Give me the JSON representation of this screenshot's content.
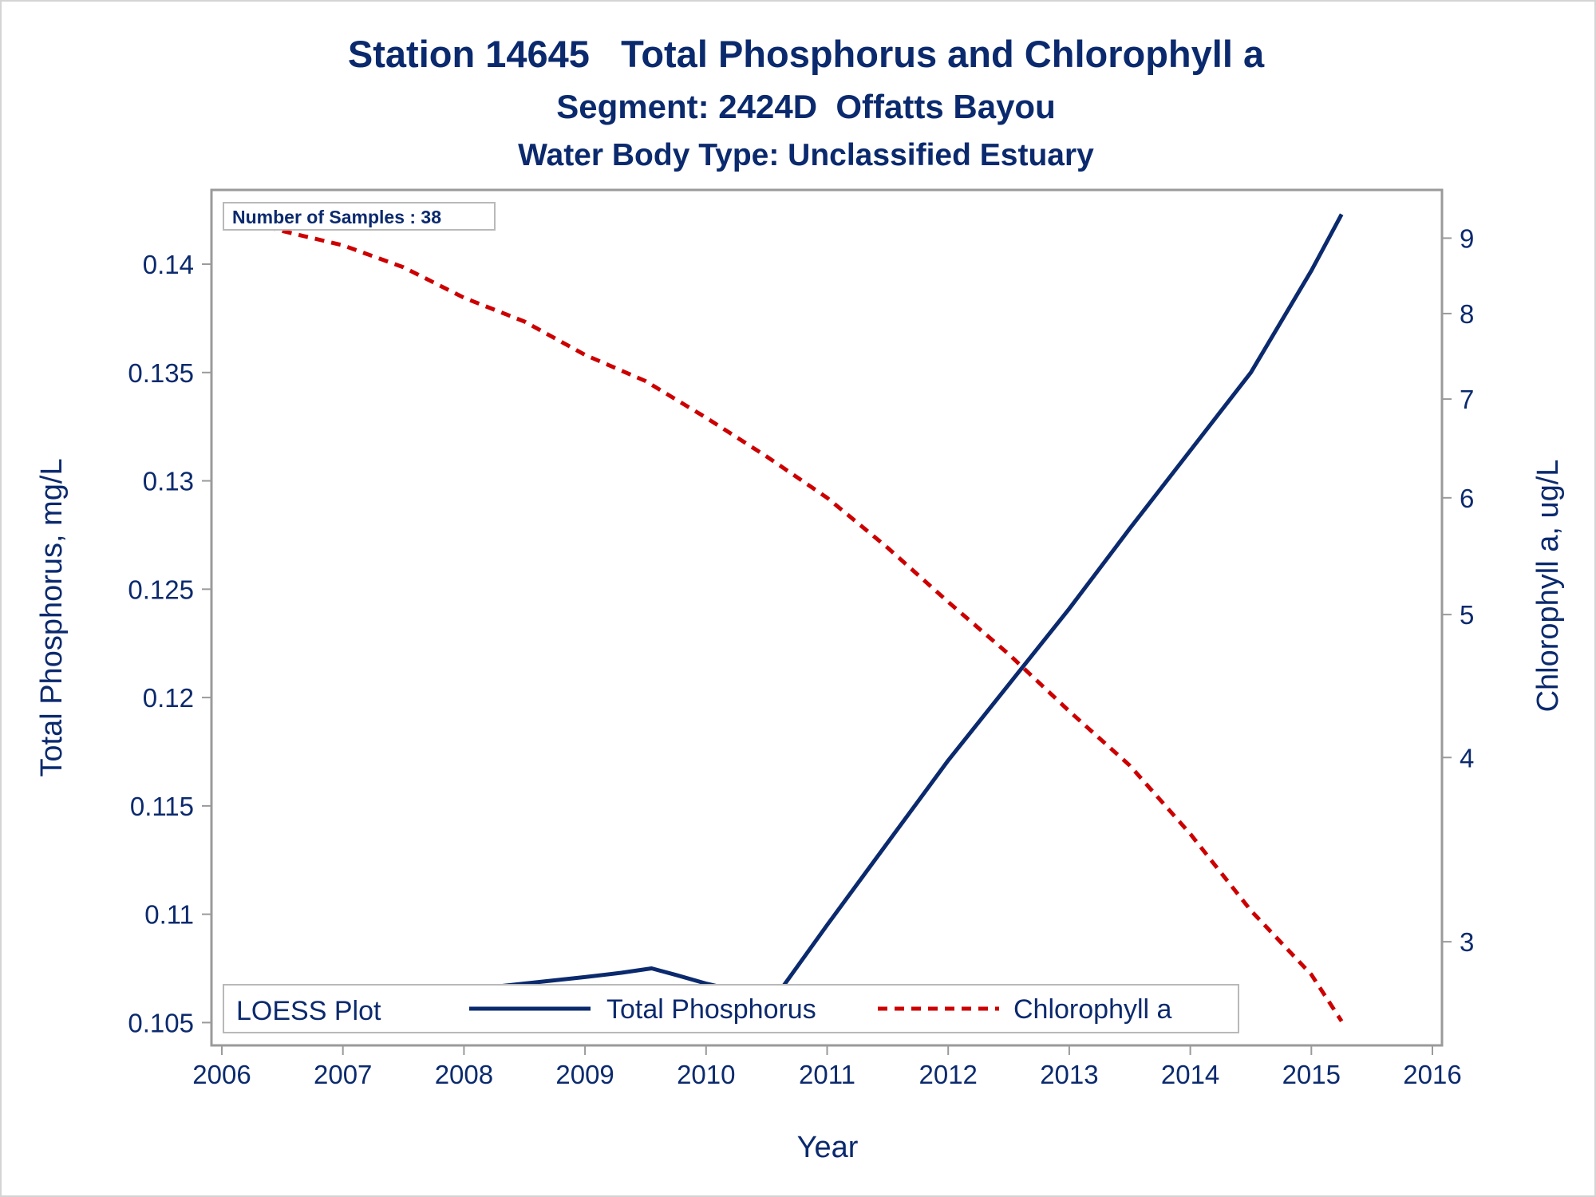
{
  "chart_data": {
    "type": "line",
    "title": "Station 14645   Total Phosphorus and Chlorophyll a",
    "subtitle": "Segment: 2424D  Offatts Bayou",
    "subtitle2": "Water Body Type: Unclassified Estuary",
    "xlabel": "Year",
    "ylabel": "Total Phosphorus, mg/L",
    "y2label": "Chlorophyll a, ug/L",
    "xlim": [
      2006,
      2016
    ],
    "ylim": [
      0.1045,
      0.1428
    ],
    "y2lim": [
      2.6,
      9.5
    ],
    "y2_scale": "log",
    "x_ticks": [
      "2006",
      "2007",
      "2008",
      "2009",
      "2010",
      "2011",
      "2012",
      "2013",
      "2014",
      "2015",
      "2016"
    ],
    "y_ticks": [
      "0.105",
      "0.11",
      "0.115",
      "0.12",
      "0.125",
      "0.13",
      "0.135",
      "0.14"
    ],
    "y2_ticks": [
      "3",
      "4",
      "5",
      "6",
      "7",
      "8",
      "9"
    ],
    "inset_text": "Number of Samples : 38",
    "grid": false,
    "legend": {
      "title": "LOESS Plot",
      "placement": "bottom-left inside",
      "entries": [
        "Total Phosphorus",
        "Chlorophyll a"
      ]
    },
    "series": [
      {
        "name": "Total Phosphorus",
        "axis": "left",
        "color": "#0b2a6e",
        "style": "solid",
        "x": [
          2006.1,
          2006.5,
          2007.0,
          2007.5,
          2008.0,
          2008.5,
          2009.0,
          2009.3,
          2009.55,
          2009.75,
          2010.0,
          2010.3,
          2010.55,
          2011.0,
          2011.5,
          2012.0,
          2012.5,
          2013.0,
          2013.5,
          2014.0,
          2014.5,
          2015.0,
          2015.25
        ],
        "values": [
          0.1048,
          0.1053,
          0.1058,
          0.1062,
          0.1065,
          0.1068,
          0.1071,
          0.1073,
          0.1075,
          0.1072,
          0.1068,
          0.1064,
          0.106,
          0.1095,
          0.1133,
          0.1171,
          0.1206,
          0.1241,
          0.1278,
          0.1314,
          0.135,
          0.1397,
          0.1423
        ]
      },
      {
        "name": "Chlorophyll a",
        "axis": "right",
        "color": "#cc0000",
        "style": "dashed",
        "x": [
          2006.1,
          2006.5,
          2007.0,
          2007.5,
          2008.0,
          2008.5,
          2009.0,
          2009.5,
          2010.0,
          2010.5,
          2011.0,
          2011.5,
          2012.0,
          2012.5,
          2013.0,
          2013.5,
          2014.0,
          2014.5,
          2015.0,
          2015.25
        ],
        "values": [
          9.3,
          9.1,
          8.9,
          8.6,
          8.2,
          7.9,
          7.5,
          7.2,
          6.8,
          6.4,
          6.0,
          5.55,
          5.1,
          4.7,
          4.3,
          3.95,
          3.55,
          3.15,
          2.85,
          2.65
        ]
      }
    ]
  }
}
